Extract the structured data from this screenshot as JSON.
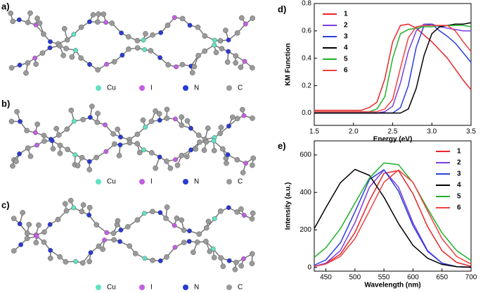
{
  "panels": [
    {
      "label": "a)",
      "legend": [
        "Cu",
        "I",
        "N",
        "C"
      ]
    },
    {
      "label": "b)",
      "legend": [
        "Cu",
        "I",
        "N",
        "C"
      ]
    },
    {
      "label": "c)",
      "legend": [
        "Cu",
        "I",
        "N",
        "C"
      ]
    }
  ],
  "legend_colors": [
    "#5fe3c3",
    "#c060e0",
    "#2a3ad0",
    "#9a9a9a"
  ],
  "chart_data": [
    {
      "type": "line",
      "panel_label": "d)",
      "x_label": "Energy (eV)",
      "y_label": "KM Function",
      "x": [
        1.5,
        1.6,
        1.7,
        1.8,
        1.9,
        2.0,
        2.1,
        2.2,
        2.3,
        2.4,
        2.5,
        2.6,
        2.7,
        2.8,
        2.9,
        3.0,
        3.1,
        3.2,
        3.3,
        3.4,
        3.5
      ],
      "series": [
        {
          "name": "1",
          "color": "#e8262a",
          "values": [
            0.02,
            0.02,
            0.02,
            0.02,
            0.02,
            0.02,
            0.02,
            0.04,
            0.08,
            0.25,
            0.52,
            0.64,
            0.65,
            0.62,
            0.57,
            0.52,
            0.46,
            0.4,
            0.32,
            0.24,
            0.17
          ]
        },
        {
          "name": "2",
          "color": "#7a3ee0",
          "values": [
            0,
            0,
            0,
            0,
            0,
            0,
            0,
            0,
            0,
            0.01,
            0.05,
            0.22,
            0.45,
            0.6,
            0.65,
            0.65,
            0.63,
            0.62,
            0.61,
            0.6,
            0.6
          ]
        },
        {
          "name": "3",
          "color": "#2b3fe0",
          "values": [
            0,
            0,
            0,
            0,
            0,
            0,
            0,
            0,
            0,
            0,
            0,
            0.04,
            0.2,
            0.48,
            0.64,
            0.65,
            0.6,
            0.56,
            0.51,
            0.44,
            0.37
          ]
        },
        {
          "name": "4",
          "color": "#000000",
          "values": [
            0,
            0,
            0,
            0,
            0,
            0,
            0,
            0,
            0,
            0,
            0,
            0,
            0.03,
            0.18,
            0.42,
            0.58,
            0.63,
            0.64,
            0.65,
            0.65,
            0.66
          ]
        },
        {
          "name": "5",
          "color": "#1fb02a",
          "values": [
            0.01,
            0.01,
            0.01,
            0.01,
            0.01,
            0.01,
            0.01,
            0.01,
            0.03,
            0.12,
            0.4,
            0.58,
            0.61,
            0.62,
            0.63,
            0.63,
            0.64,
            0.64,
            0.64,
            0.64,
            0.63
          ]
        },
        {
          "name": "6",
          "color": "#f04040",
          "values": [
            0.01,
            0.01,
            0.01,
            0.01,
            0.01,
            0.01,
            0.01,
            0.01,
            0.01,
            0.03,
            0.1,
            0.33,
            0.55,
            0.63,
            0.64,
            0.64,
            0.64,
            0.64,
            0.6,
            0.52,
            0.45
          ]
        }
      ],
      "xlim": [
        1.5,
        3.5
      ],
      "xticks": [
        1.5,
        {
          "value": 2,
          "label": "2.0"
        },
        2.5,
        {
          "value": 3,
          "label": "3.0"
        },
        3.5
      ],
      "ylim": [
        -0.09,
        0.8
      ],
      "yticks": [
        {
          "value": 0,
          "label": "0.0"
        },
        0.2,
        0.4,
        0.6,
        0.8
      ],
      "legend": "upper left"
    },
    {
      "type": "line",
      "panel_label": "e)",
      "x_label": "Wavelength (nm)",
      "y_label": "Intensity (a.u.)",
      "x": [
        430,
        450,
        475,
        500,
        525,
        550,
        575,
        600,
        625,
        650,
        675,
        700
      ],
      "series": [
        {
          "name": "1",
          "color": "#e8262a",
          "values": [
            6,
            20,
            71,
            186,
            357,
            502,
            517,
            393,
            218,
            89,
            27,
            6
          ]
        },
        {
          "name": "2",
          "color": "#7a3ee0",
          "values": [
            6,
            23,
            90,
            238,
            428,
            520,
            428,
            238,
            90,
            23,
            4,
            0
          ]
        },
        {
          "name": "3",
          "color": "#2b3fe0",
          "values": [
            12,
            40,
            131,
            296,
            469,
            521,
            407,
            223,
            86,
            23,
            4,
            1
          ]
        },
        {
          "name": "4",
          "color": "#000000",
          "values": [
            207,
            319,
            452,
            523,
            491,
            375,
            234,
            118,
            49,
            16,
            4,
            1
          ]
        },
        {
          "name": "5",
          "color": "#1fb02a",
          "values": [
            54,
            105,
            207,
            343,
            477,
            557,
            548,
            452,
            314,
            184,
            90,
            37
          ]
        },
        {
          "name": "6",
          "color": "#f04040",
          "values": [
            5,
            18,
            59,
            153,
            302,
            454,
            520,
            454,
            302,
            153,
            59,
            18
          ]
        }
      ],
      "xlim": [
        430,
        700
      ],
      "xticks": [
        450,
        500,
        550,
        600,
        650,
        700
      ],
      "ylim": [
        -20,
        675
      ],
      "yticks": [
        0,
        200,
        400,
        600
      ],
      "legend": "upper right"
    }
  ]
}
